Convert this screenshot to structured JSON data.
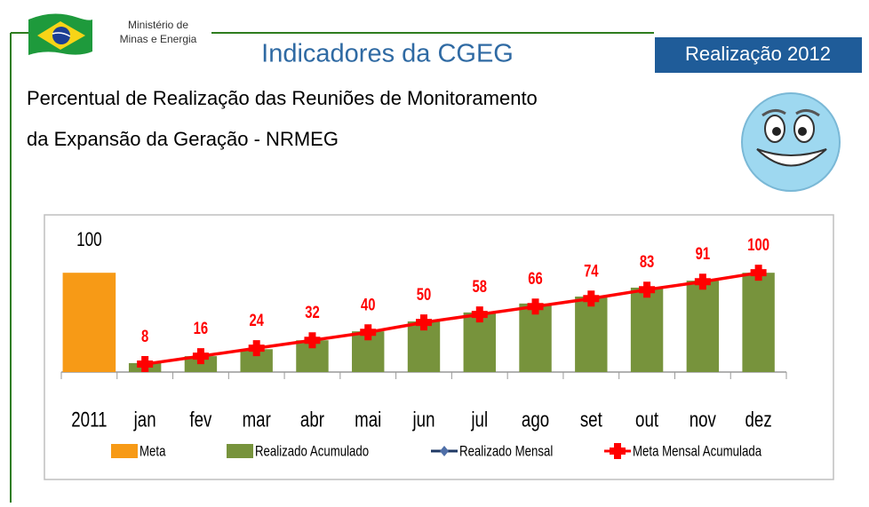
{
  "header": {
    "ministry": [
      "Ministério de",
      "Minas e Energia"
    ],
    "title": "Indicadores da CGEG",
    "badge": "Realização 2012",
    "subtitle": [
      "Percentual de Realização das Reuniões de Monitoramento",
      "da Expansão da Geração - NRMEG"
    ]
  },
  "chart_data": {
    "type": "bar",
    "categories": [
      "2011",
      "jan",
      "fev",
      "mar",
      "abr",
      "mai",
      "jun",
      "jul",
      "ago",
      "set",
      "out",
      "nov",
      "dez"
    ],
    "ylim": [
      0,
      110
    ],
    "legend": "bottom",
    "series": [
      {
        "name": "Meta",
        "type": "bar",
        "color": "#f79a16",
        "labels": true,
        "label_color": "#000000",
        "values": [
          100,
          null,
          null,
          null,
          null,
          null,
          null,
          null,
          null,
          null,
          null,
          null,
          null
        ]
      },
      {
        "name": "Realizado Acumulado",
        "type": "bar",
        "color": "#77933c",
        "labels": false,
        "values": [
          null,
          9,
          16,
          23,
          32,
          41,
          51,
          60,
          69,
          76,
          85,
          92,
          100
        ]
      },
      {
        "name": "Realizado Mensal",
        "type": "line",
        "color": "#1f3864",
        "labels": false,
        "values": [
          null,
          null,
          null,
          null,
          null,
          null,
          null,
          null,
          null,
          null,
          null,
          null,
          null
        ]
      },
      {
        "name": "Meta Mensal Acumulada",
        "type": "line",
        "color": "#ff0000",
        "labels": true,
        "label_color": "#ff0000",
        "values": [
          null,
          8,
          16,
          24,
          32,
          40,
          50,
          58,
          66,
          74,
          83,
          91,
          100
        ]
      }
    ]
  }
}
